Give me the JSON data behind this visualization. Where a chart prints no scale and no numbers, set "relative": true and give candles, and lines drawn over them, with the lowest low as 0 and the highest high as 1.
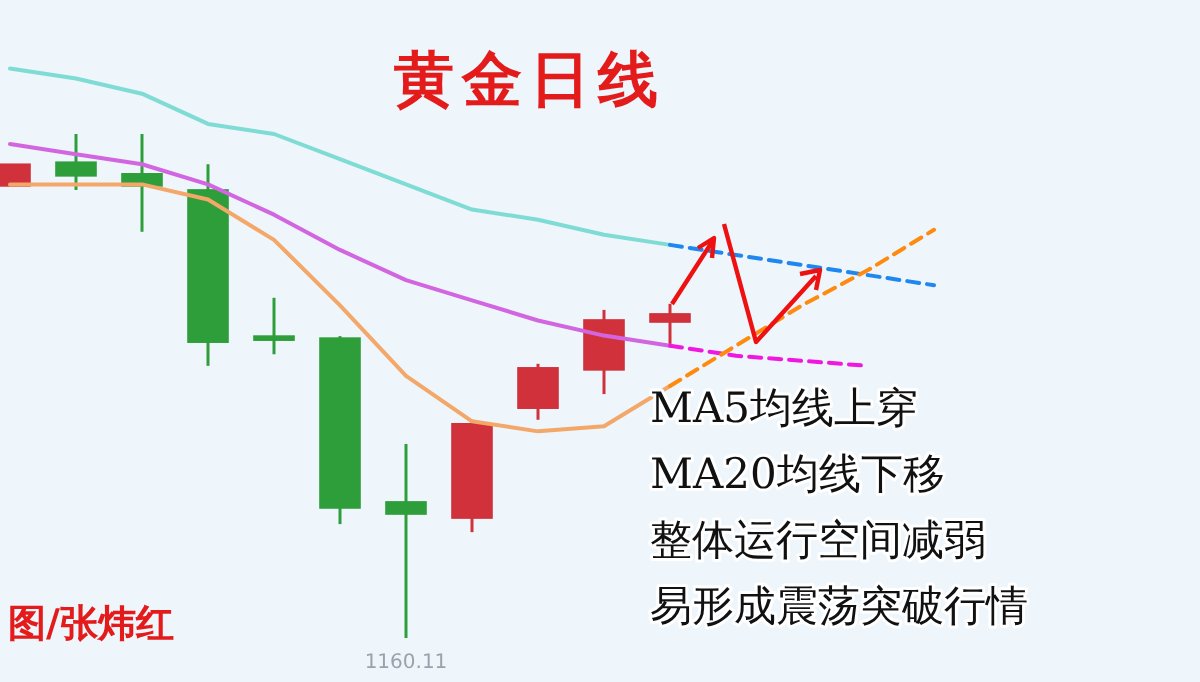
{
  "chart_data": {
    "type": "candlestick",
    "relative": true,
    "title": "黄金日线",
    "categories": [
      null,
      null,
      null,
      null,
      null,
      null,
      null,
      null,
      null,
      null,
      null,
      null,
      null,
      null,
      null
    ],
    "ohlc": [
      [
        0.897,
        0.94,
        0.897,
        0.94
      ],
      [
        0.944,
        1.0,
        0.889,
        0.917
      ],
      [
        0.921,
        1.0,
        0.806,
        0.897
      ],
      [
        0.889,
        0.94,
        0.54,
        0.587
      ],
      [
        0.599,
        0.675,
        0.563,
        0.591
      ],
      [
        0.595,
        0.599,
        0.226,
        0.258
      ],
      [
        0.27,
        0.385,
        0,
        0.246
      ],
      [
        0.238,
        0.433,
        0.21,
        0.425
      ],
      [
        0.456,
        0.544,
        0.433,
        0.536
      ],
      [
        0.532,
        0.651,
        0.484,
        0.631
      ],
      [
        0.627,
        0.663,
        0.579,
        0.643
      ],
      null,
      null,
      null,
      null
    ],
    "colors": [
      "#d0313a",
      "#2e9e3a",
      "#2e9e3a",
      "#2e9e3a",
      "#2e9e3a",
      "#2e9e3a",
      "#2e9e3a",
      "#d0313a",
      "#d0313a",
      "#d0313a",
      "#d0313a",
      null,
      null,
      null,
      null
    ],
    "series": [
      {
        "type": "line",
        "color": "#7fdcd4",
        "values": [
          1.13,
          1.11,
          1.08,
          1.02,
          1.0,
          0.95,
          0.9,
          0.85,
          0.83,
          0.8,
          0.78,
          null,
          null,
          null,
          null
        ]
      },
      {
        "type": "line",
        "color": "#1e88f0",
        "line_style": "dashed",
        "values": [
          null,
          null,
          null,
          null,
          null,
          null,
          null,
          null,
          null,
          null,
          0.78,
          0.76,
          0.74,
          0.72,
          0.7
        ]
      },
      {
        "type": "line",
        "color": "#d166e0",
        "values": [
          0.98,
          0.96,
          0.94,
          0.9,
          0.84,
          0.77,
          0.71,
          0.67,
          0.63,
          0.6,
          0.58,
          null,
          null,
          null,
          null
        ]
      },
      {
        "type": "line",
        "color": "#f018e0",
        "line_style": "dashed",
        "values": [
          null,
          null,
          null,
          null,
          null,
          null,
          null,
          null,
          null,
          null,
          0.58,
          0.56,
          0.55,
          0.54,
          null
        ]
      },
      {
        "type": "line",
        "color": "#f3a86a",
        "values": [
          0.9,
          0.9,
          0.9,
          0.87,
          0.79,
          0.66,
          0.52,
          0.43,
          0.41,
          0.42,
          0.5,
          null,
          null,
          null,
          null
        ]
      },
      {
        "type": "line",
        "color": "#ff8a10",
        "line_style": "dashed",
        "values": [
          null,
          null,
          null,
          null,
          null,
          null,
          null,
          null,
          null,
          null,
          0.5,
          0.58,
          0.66,
          0.73,
          0.81
        ]
      }
    ],
    "annotations": [
      "MA5均线上穿",
      "MA20均线下移",
      "整体运行空间减弱",
      "易形成震荡突破行情",
      "图/张炜红",
      "1160.11"
    ]
  }
}
